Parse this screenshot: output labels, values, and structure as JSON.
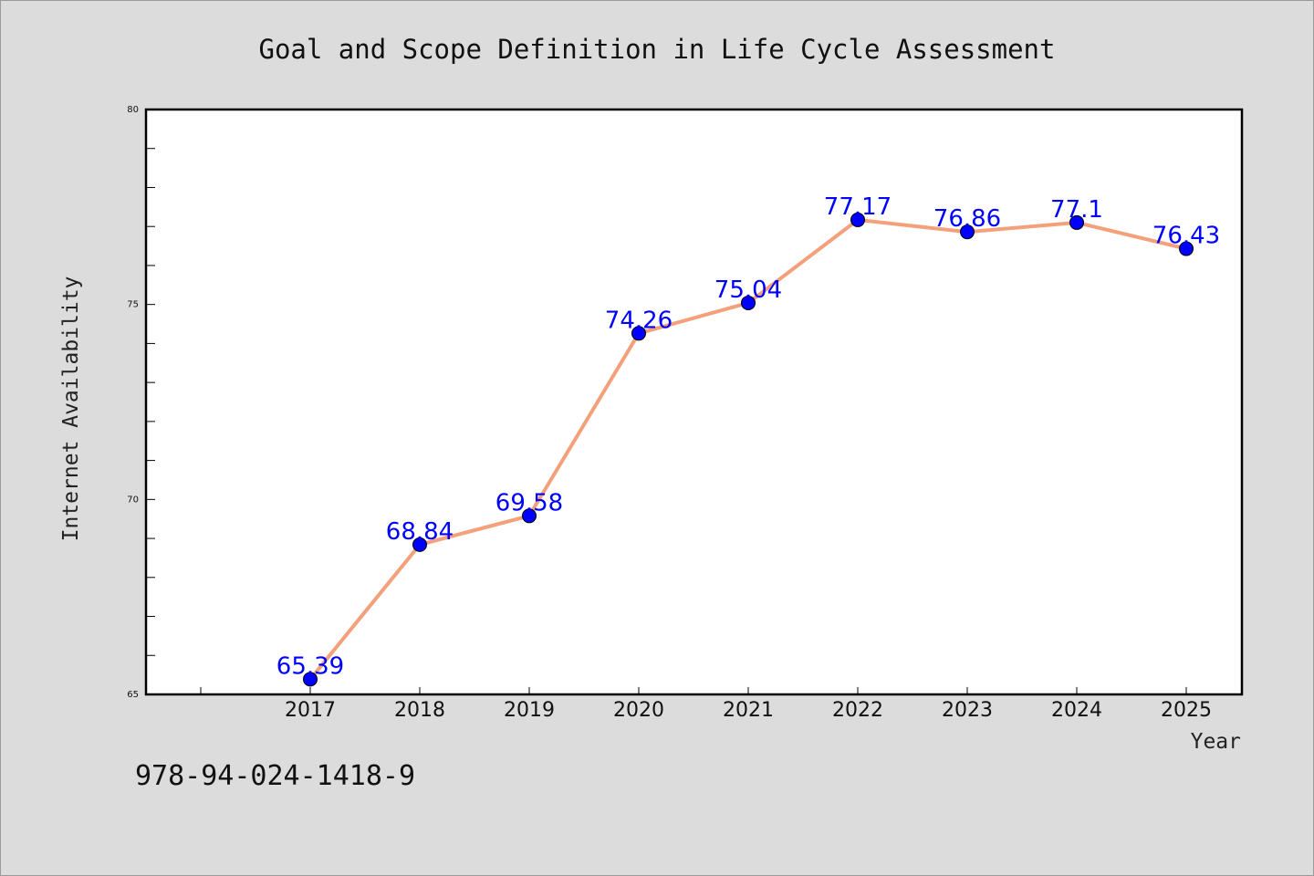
{
  "chart_data": {
    "type": "line",
    "title": "Goal and Scope Definition in Life Cycle Assessment",
    "xlabel": "Year",
    "ylabel": "Internet Availability",
    "categories": [
      "2017",
      "2018",
      "2019",
      "2020",
      "2021",
      "2022",
      "2023",
      "2024",
      "2025"
    ],
    "series": [
      {
        "values": [
          65.39,
          68.84,
          69.58,
          74.26,
          75.04,
          77.17,
          76.86,
          77.1,
          76.43
        ],
        "labels": [
          "65.39",
          "68.84",
          "69.58",
          "74.26",
          "75.04",
          "77.17",
          "76.86",
          "77.1",
          "76.43"
        ],
        "line_color": "#f4a07a",
        "marker_color": "#0000ff"
      }
    ],
    "ylim": [
      65,
      80
    ],
    "yticks": [
      "65",
      "70",
      "75",
      "80"
    ],
    "grid": false,
    "legend": "none"
  },
  "footer": {
    "isbn": "978-94-024-1418-9"
  },
  "colors": {
    "background": "#dcdcdc",
    "plot_background": "#ffffff",
    "line": "#f4a07a",
    "marker": "#0000ff",
    "data_label": "#0000ff"
  }
}
